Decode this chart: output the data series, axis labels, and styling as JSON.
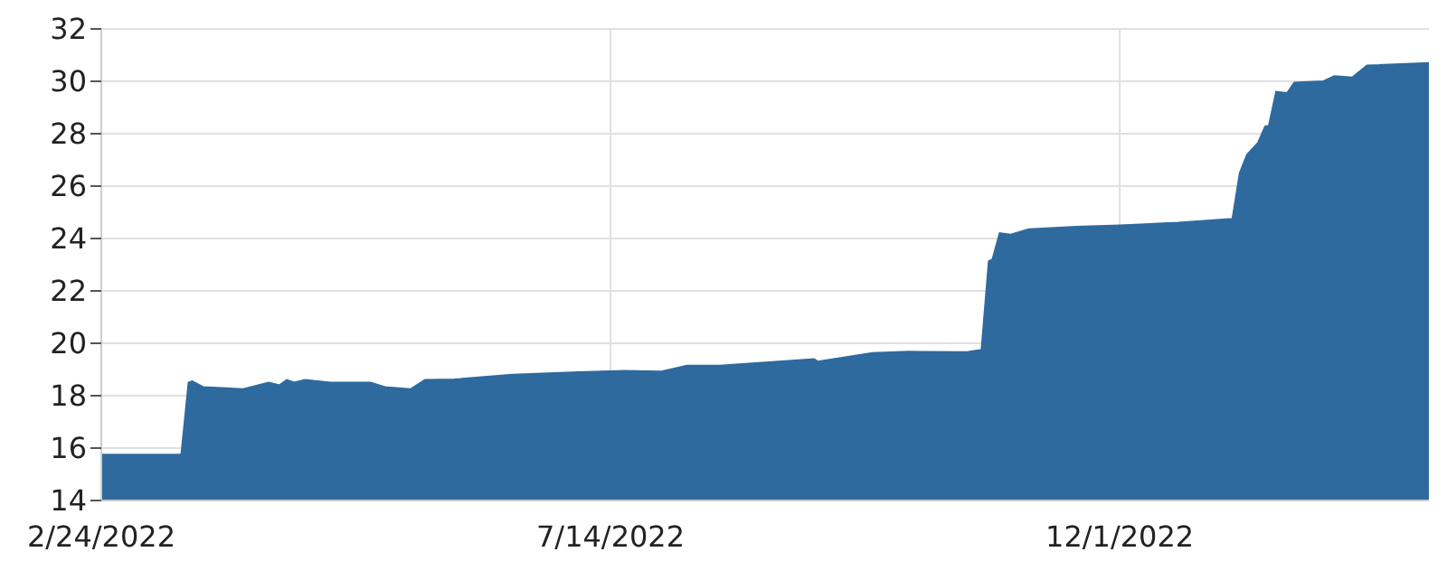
{
  "chart_data": {
    "type": "area",
    "x": [
      "2022-02-24",
      "2022-03-18",
      "2022-03-20",
      "2022-03-21",
      "2022-03-24",
      "2022-04-04",
      "2022-04-11",
      "2022-04-14",
      "2022-04-16",
      "2022-04-18",
      "2022-04-21",
      "2022-04-28",
      "2022-05-09",
      "2022-05-13",
      "2022-05-20",
      "2022-05-24",
      "2022-06-01",
      "2022-06-17",
      "2022-07-05",
      "2022-07-18",
      "2022-07-28",
      "2022-08-04",
      "2022-08-13",
      "2022-09-08",
      "2022-09-09",
      "2022-09-24",
      "2022-10-04",
      "2022-10-20",
      "2022-10-24",
      "2022-10-26",
      "2022-10-27",
      "2022-10-29",
      "2022-11-01",
      "2022-11-06",
      "2022-11-19",
      "2022-12-01",
      "2022-12-17",
      "2023-01-01",
      "2023-01-03",
      "2023-01-05",
      "2023-01-08",
      "2023-01-10",
      "2023-01-11",
      "2023-01-13",
      "2023-01-16",
      "2023-01-18",
      "2023-01-26",
      "2023-01-29",
      "2023-02-03",
      "2023-02-07",
      "2023-02-24"
    ],
    "series": [
      {
        "color": "#2e6a9e",
        "values": [
          15.75,
          15.75,
          18.5,
          18.55,
          18.33,
          18.25,
          18.5,
          18.4,
          18.6,
          18.5,
          18.6,
          18.5,
          18.5,
          18.33,
          18.25,
          18.6,
          18.62,
          18.8,
          18.9,
          18.95,
          18.92,
          19.15,
          19.15,
          19.4,
          19.3,
          19.63,
          19.68,
          19.66,
          19.75,
          23.13,
          23.2,
          24.2,
          24.15,
          24.35,
          24.45,
          24.5,
          24.6,
          24.75,
          26.5,
          27.2,
          27.65,
          28.28,
          28.3,
          29.6,
          29.55,
          29.95,
          30.0,
          30.2,
          30.15,
          30.6,
          30.7
        ]
      }
    ],
    "xlim": [
      "2022-02-24",
      "2023-02-24"
    ],
    "xticks": [
      {
        "value": "2022-02-24",
        "label": "2/24/2022"
      },
      {
        "value": "2022-07-14",
        "label": "7/14/2022"
      },
      {
        "value": "2022-12-01",
        "label": "12/1/2022"
      }
    ],
    "ylim": [
      14,
      32
    ],
    "yticks": [
      14,
      16,
      18,
      20,
      22,
      24,
      26,
      28,
      30,
      32
    ],
    "grid": true,
    "legend": false
  }
}
